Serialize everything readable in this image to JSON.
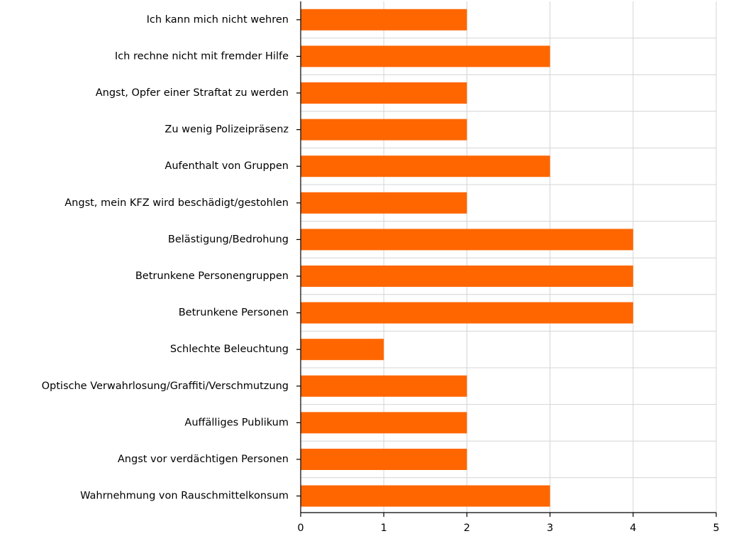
{
  "chart_data": {
    "type": "bar",
    "orientation": "horizontal",
    "categories": [
      "Ich kann mich nicht wehren",
      "Ich rechne nicht mit fremder Hilfe",
      "Angst, Opfer einer Straftat zu werden",
      "Zu wenig Polizeipräsenz",
      "Aufenthalt von Gruppen",
      "Angst, mein KFZ wird beschädigt/gestohlen",
      "Belästigung/Bedrohung",
      "Betrunkene Personengruppen",
      "Betrunkene Personen",
      "Schlechte Beleuchtung",
      "Optische Verwahrlosung/Graffiti/Verschmutzung",
      "Auffälliges Publikum",
      "Angst vor verdächtigen Personen",
      "Wahrnehmung von Rauschmittelkonsum"
    ],
    "values": [
      2,
      3,
      2,
      2,
      3,
      2,
      4,
      4,
      4,
      1,
      2,
      2,
      2,
      3
    ],
    "xlim": [
      0,
      5
    ],
    "xticks": [
      0,
      1,
      2,
      3,
      4,
      5
    ],
    "grid": "vertical",
    "bar_color": "#ff6600",
    "title": "",
    "xlabel": "",
    "ylabel": ""
  }
}
